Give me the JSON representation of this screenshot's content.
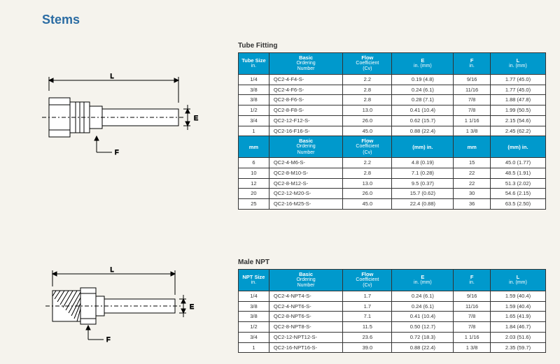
{
  "title": "Stems",
  "section1_title": "Tube Fitting",
  "section2_title": "Male NPT",
  "table1": {
    "headers1": [
      {
        "l1": "Tube Size",
        "l2": "in."
      },
      {
        "l1": "Basic",
        "l2": "Ordering",
        "l3": "Number"
      },
      {
        "l1": "Flow",
        "l2": "Coefficient",
        "l3": "(Cv)"
      },
      {
        "l1": "E",
        "l2": "in. (mm)"
      },
      {
        "l1": "F",
        "l2": "in."
      },
      {
        "l1": "L",
        "l2": "in. (mm)"
      }
    ],
    "rows1": [
      [
        "1/4",
        "QC2-4-F4-S-",
        "2.2",
        "0.19 (4.8)",
        "9/16",
        "1.77 (45.0)"
      ],
      [
        "3/8",
        "QC2-4-F6-S-",
        "2.8",
        "0.24 (6.1)",
        "11/16",
        "1.77 (45.0)"
      ],
      [
        "3/8",
        "QC2-8-F6-S-",
        "2.8",
        "0.28 (7.1)",
        "7/8",
        "1.88 (47.8)"
      ],
      [
        "1/2",
        "QC2-8-F8-S-",
        "13.0",
        "0.41 (10.4)",
        "7/8",
        "1.99 (50.5)"
      ],
      [
        "3/4",
        "QC2-12-F12-S-",
        "26.0",
        "0.62 (15.7)",
        "1 1/16",
        "2.15 (54.6)"
      ],
      [
        "1",
        "QC2-16-F16-S-",
        "45.0",
        "0.88 (22.4)",
        "1 3/8",
        "2.45 (62.2)"
      ]
    ],
    "headers2": [
      {
        "l1": "mm"
      },
      {
        "l1": "Basic",
        "l2": "Ordering",
        "l3": "Number"
      },
      {
        "l1": "Flow",
        "l2": "Coefficient",
        "l3": "(Cv)"
      },
      {
        "l1": "(mm) in."
      },
      {
        "l1": "mm"
      },
      {
        "l1": "(mm) in."
      }
    ],
    "rows2": [
      [
        "6",
        "QC2-4-M6-S-",
        "2.2",
        "4.8  (0.19)",
        "15",
        "45.0  (1.77)"
      ],
      [
        "10",
        "QC2-8-M10-S-",
        "2.8",
        "7.1 (0.28)",
        "22",
        "48.5  (1.91)"
      ],
      [
        "12",
        "QC2-8-M12-S-",
        "13.0",
        "9.5 (0.37)",
        "22",
        "51.3  (2.02)"
      ],
      [
        "20",
        "QC2-12-M20-S-",
        "26.0",
        "15.7  (0.62)",
        "30",
        "54.6  (2.15)"
      ],
      [
        "25",
        "QC2-16-M25-S-",
        "45.0",
        "22.4  (0.88)",
        "36",
        "63.5  (2.50)"
      ]
    ],
    "col_widths": [
      "10%",
      "24%",
      "16%",
      "20%",
      "12%",
      "18%"
    ]
  },
  "table2": {
    "headers": [
      {
        "l1": "NPT Size",
        "l2": "in."
      },
      {
        "l1": "Basic",
        "l2": "Ordering",
        "l3": "Number"
      },
      {
        "l1": "Flow",
        "l2": "Coefficient",
        "l3": "(Cv)"
      },
      {
        "l1": "E",
        "l2": "in. (mm)"
      },
      {
        "l1": "F",
        "l2": "in."
      },
      {
        "l1": "L",
        "l2": "in. (mm)"
      }
    ],
    "rows": [
      [
        "1/4",
        "QC2-4-NPT4-S-",
        "1.7",
        "0.24 (6.1)",
        "9/16",
        "1.59  (40.4)"
      ],
      [
        "3/8",
        "QC2-4-NPT6-S-",
        "1.7",
        "0.24 (6.1)",
        "11/16",
        "1.59  (40.4)"
      ],
      [
        "3/8",
        "QC2-8-NPT6-S-",
        "7.1",
        "0.41 (10.4)",
        "7/8",
        "1.65  (41.9)"
      ],
      [
        "1/2",
        "QC2-8-NPT8-S-",
        "11.5",
        "0.50 (12.7)",
        "7/8",
        "1.84  (46.7)"
      ],
      [
        "3/4",
        "QC2-12-NPT12-S-",
        "23.6",
        "0.72 (18.3)",
        "1 1/16",
        "2.03  (51.6)"
      ],
      [
        "1",
        "QC2-16-NPT16-S-",
        "39.0",
        "0.88 (22.4)",
        "1 3/8",
        "2.35  (59.7)"
      ]
    ],
    "col_widths": [
      "10%",
      "24%",
      "16%",
      "20%",
      "12%",
      "18%"
    ]
  },
  "diagram_labels": {
    "L": "L",
    "E": "E",
    "F": "F"
  }
}
